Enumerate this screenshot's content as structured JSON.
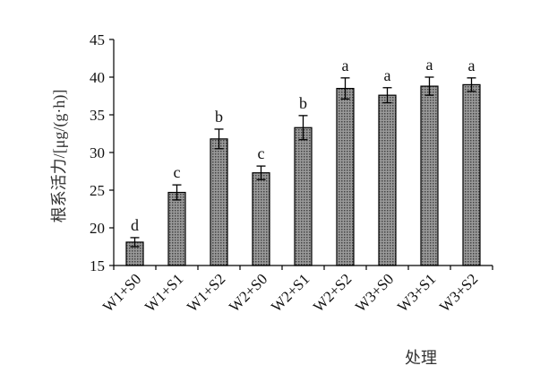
{
  "chart_data": {
    "type": "bar",
    "title": "",
    "xlabel": "处理",
    "ylabel": "根系活力/[μg/(g·h)]",
    "ylim": [
      15,
      45
    ],
    "yticks": [
      15,
      20,
      25,
      30,
      35,
      40,
      45
    ],
    "categories": [
      "W1+S0",
      "W1+S1",
      "W1+S2",
      "W2+S0",
      "W2+S1",
      "W2+S2",
      "W3+S0",
      "W3+S1",
      "W3+S2"
    ],
    "values": [
      18.1,
      24.7,
      31.8,
      27.3,
      33.3,
      38.5,
      37.6,
      38.8,
      39.0
    ],
    "errors": [
      0.6,
      1.0,
      1.3,
      0.9,
      1.6,
      1.4,
      1.0,
      1.2,
      0.9
    ],
    "significance": [
      "d",
      "c",
      "b",
      "c",
      "b",
      "a",
      "a",
      "a",
      "a"
    ],
    "grid": false,
    "legend": "none",
    "bar_fill": "#8a8a8a",
    "bar_stroke": "#000000"
  }
}
